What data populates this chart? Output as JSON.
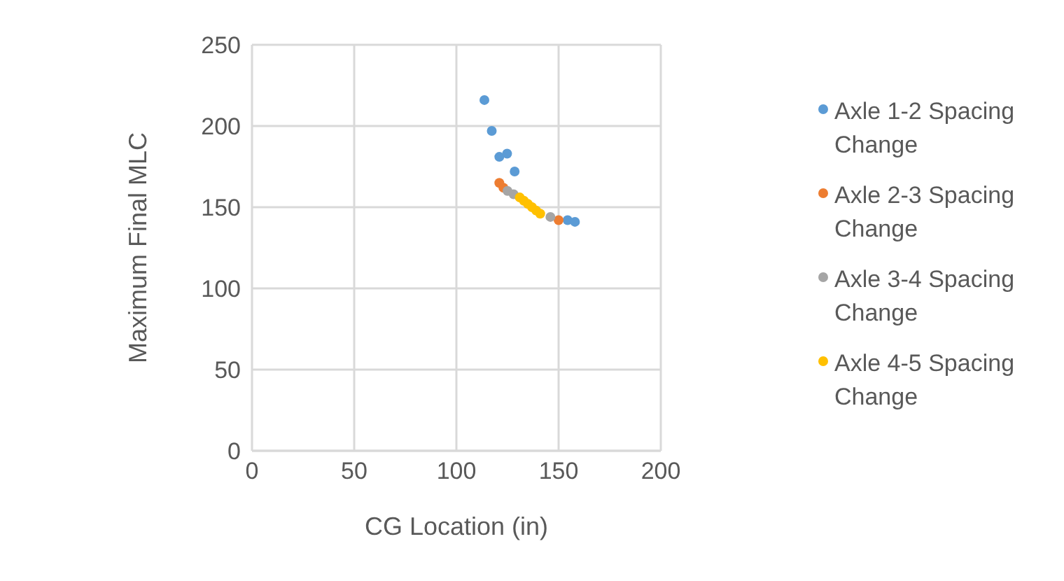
{
  "chart_data": {
    "type": "scatter",
    "xlabel": "CG Location (in)",
    "ylabel": "Maximum Final MLC",
    "xlim": [
      0,
      200
    ],
    "xticks": [
      0,
      50,
      100,
      150,
      200
    ],
    "ylim": [
      0,
      250
    ],
    "yticks": [
      0,
      50,
      100,
      150,
      200,
      250
    ],
    "grid": true,
    "legend": "right",
    "marker": "circle",
    "series": [
      {
        "name": "Axle 1-2 Spacing Change",
        "color": "#5b9bd5",
        "x": [
          113.7,
          117.3,
          121,
          124.8,
          128.5,
          154.4,
          158
        ],
        "values": [
          216,
          197,
          181,
          183,
          172,
          142,
          141
        ]
      },
      {
        "name": "Axle 2-3 Spacing Change",
        "color": "#ed7d31",
        "x": [
          121,
          123,
          150
        ],
        "values": [
          165,
          162,
          142
        ]
      },
      {
        "name": "Axle 3-4 Spacing Change",
        "color": "#a5a5a5",
        "x": [
          125,
          128,
          146
        ],
        "values": [
          160,
          158,
          144
        ]
      },
      {
        "name": "Axle 4-5 Spacing Change",
        "color": "#ffc000",
        "x": [
          131,
          133,
          135,
          137,
          139,
          141
        ],
        "values": [
          156,
          154,
          152,
          150,
          148,
          146
        ]
      }
    ]
  }
}
